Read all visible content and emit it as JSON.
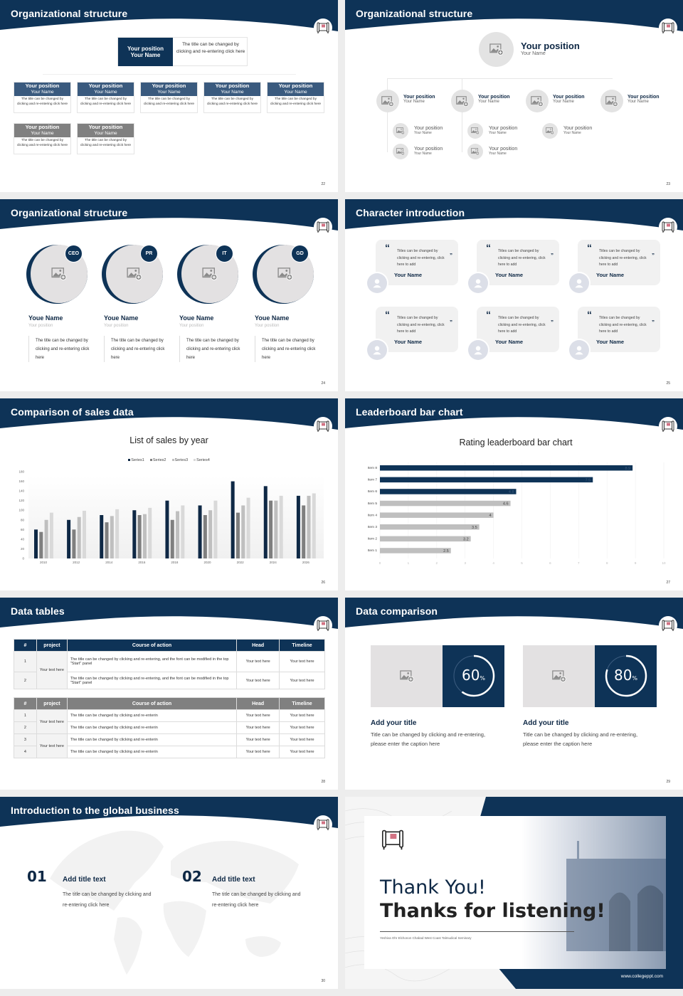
{
  "slides": {
    "s22": {
      "title": "Organizational structure",
      "page": "22",
      "top": {
        "position": "Your position",
        "name": "Your Name",
        "desc": "The title can be changed by clicking and re-entering click here"
      },
      "row1": [
        {
          "position": "Your position",
          "name": "Your Name",
          "desc": "The title can be changed by clicking and re-entering click here"
        },
        {
          "position": "Your position",
          "name": "Your Name",
          "desc": "The title can be changed by clicking and re-entering click here"
        },
        {
          "position": "Your position",
          "name": "Your Name",
          "desc": "The title can be changed by clicking and re-entering click here"
        },
        {
          "position": "Your position",
          "name": "Your Name",
          "desc": "The title can be changed by clicking and re-entering click here"
        },
        {
          "position": "Your position",
          "name": "Your Name",
          "desc": "The title can be changed by clicking and re-entering click here"
        }
      ],
      "row2": [
        {
          "position": "Your position",
          "name": "Your Name",
          "desc": "The title can be changed by clicking and re-entering click here"
        },
        {
          "position": "Your position",
          "name": "Your Name",
          "desc": "The title can be changed by clicking and re-entering click here"
        }
      ]
    },
    "s23": {
      "title": "Organizational structure",
      "page": "23",
      "top": {
        "position": "Your position",
        "name": "Your Name"
      },
      "level1": [
        {
          "position": "Your position",
          "name": "Your Name"
        },
        {
          "position": "Your position",
          "name": "Your Name"
        },
        {
          "position": "Your position",
          "name": "Your Name"
        },
        {
          "position": "Your position",
          "name": "Your Name"
        }
      ],
      "level2": [
        {
          "position": "Your position",
          "name": "Your Name"
        },
        {
          "position": "Your position",
          "name": "Your Name"
        },
        {
          "position": "Your position",
          "name": "Your Name"
        },
        {
          "position": "Your position",
          "name": "Your Name"
        },
        {
          "position": "Your position",
          "name": "Your Name"
        }
      ]
    },
    "s24": {
      "title": "Organizational structure",
      "page": "24",
      "members": [
        {
          "badge": "CEO",
          "name": "Youe Name",
          "position": "Your position",
          "desc": "The title can be changed by clicking and re-entering click here"
        },
        {
          "badge": "PR",
          "name": "Youe Name",
          "position": "Your position",
          "desc": "The title can be changed by clicking and re-entering click here"
        },
        {
          "badge": "IT",
          "name": "Youe Name",
          "position": "Your position",
          "desc": "The title can be changed by clicking and re-entering click here"
        },
        {
          "badge": "GD",
          "name": "Youe Name",
          "position": "Your position",
          "desc": "The title can be changed by clicking and re-entering click here"
        }
      ]
    },
    "s25": {
      "title": "Character introduction",
      "page": "25",
      "cards": [
        {
          "quote": "Titles can be changed by clicking and re-entering, click here to add",
          "name": "Your Name"
        },
        {
          "quote": "Titles can be changed by clicking and re-entering, click here to add",
          "name": "Your Name"
        },
        {
          "quote": "Titles can be changed by clicking and re-entering, click here to add",
          "name": "Your Name"
        },
        {
          "quote": "Titles can be changed by clicking and re-entering, click here to add",
          "name": "Your Name"
        },
        {
          "quote": "Titles can be changed by clicking and re-entering, click here to add",
          "name": "Your Name"
        },
        {
          "quote": "Titles can be changed by clicking and re-entering, click here to add",
          "name": "Your Name"
        }
      ],
      "open_quote": "“",
      "close_quote": "”"
    },
    "s26": {
      "title": "Comparison of sales data",
      "page": "26"
    },
    "s27": {
      "title": "Leaderboard bar chart",
      "page": "27"
    },
    "s28": {
      "title": "Data tables",
      "page": "28",
      "headers": [
        "#",
        "project",
        "Course of action",
        "Head",
        "Timeline"
      ],
      "table1": {
        "project": "Your text here",
        "rows": [
          {
            "num": "1",
            "action": "The title can be changed by clicking and re-entering, and the font can be modified in the top \"Start\" panel",
            "head": "Your text here",
            "timeline": "Your text here"
          },
          {
            "num": "2",
            "action": "The title can be changed by clicking and re-entering, and the font can be modified in the top \"Start\" panel",
            "head": "Your text here",
            "timeline": "Your text here"
          }
        ]
      },
      "table2": {
        "projects": [
          "Your text here",
          "Your text here"
        ],
        "rows": [
          {
            "num": "1",
            "action": "The title can be changed by clicking and re-enterin",
            "head": "Your text here",
            "timeline": "Your text here"
          },
          {
            "num": "2",
            "action": "The title can be changed by clicking and re-enterin",
            "head": "Your text here",
            "timeline": "Your text here"
          },
          {
            "num": "3",
            "action": "The title can be changed by clicking and re-enterin",
            "head": "Your text here",
            "timeline": "Your text here"
          },
          {
            "num": "4",
            "action": "The title can be changed by clicking and re-enterin",
            "head": "Your text here",
            "timeline": "Your text here"
          }
        ]
      }
    },
    "s29": {
      "title": "Data comparison",
      "page": "29",
      "items": [
        {
          "value": "60",
          "unit": "%",
          "pct": 60,
          "title": "Add your title",
          "desc": "Title can be changed by clicking and re-entering, please enter the caption here"
        },
        {
          "value": "80",
          "unit": "%",
          "pct": 80,
          "title": "Add your title",
          "desc": "Title can be changed by clicking and re-entering, please enter the caption here"
        }
      ]
    },
    "s30": {
      "title": "Introduction to the global business",
      "page": "30",
      "items": [
        {
          "num": "01",
          "title": "Add title text",
          "desc": "The title can be changed by clicking and re-entering click here"
        },
        {
          "num": "02",
          "title": "Add title text",
          "desc": "The title can be changed by clicking and re-entering click here"
        }
      ]
    },
    "s31": {
      "line1": "Thank You!",
      "line2": "Thanks for listening!",
      "subtitle": "Yeshiva Ohr Elchonon Chabad West Coast Talmudical Seminary",
      "url": "www.collegeppt.com"
    }
  },
  "colors": {
    "navy": "#0e3357",
    "gray": "#808080",
    "light": "#e3e3e3"
  },
  "chart_data": [
    {
      "type": "bar",
      "title": "List of sales by year",
      "categories": [
        "2010",
        "2012",
        "2014",
        "2016",
        "2018",
        "2020",
        "2022",
        "2024",
        "2026"
      ],
      "series": [
        {
          "name": "Series1",
          "color": "#0e2845",
          "values": [
            60,
            80,
            90,
            100,
            120,
            110,
            160,
            150,
            130
          ]
        },
        {
          "name": "Series2",
          "color": "#7f7f7f",
          "values": [
            55,
            60,
            75,
            90,
            80,
            90,
            95,
            120,
            110
          ]
        },
        {
          "name": "Series3",
          "color": "#bfbfbf",
          "values": [
            80,
            86,
            88,
            92,
            98,
            100,
            110,
            120,
            130
          ]
        },
        {
          "name": "Series4",
          "color": "#d9d9d9",
          "values": [
            95,
            99,
            102,
            105,
            110,
            120,
            126,
            130,
            135
          ]
        }
      ],
      "yticks": [
        "0",
        "20",
        "40",
        "60",
        "80",
        "100",
        "120",
        "140",
        "160",
        "180"
      ],
      "ylim": [
        0,
        180
      ],
      "legend_position": "top",
      "grid": false
    },
    {
      "type": "bar",
      "orientation": "horizontal",
      "title": "Rating leaderboard bar chart",
      "categories": [
        "Item 8",
        "Item 7",
        "Item 6",
        "Item 5",
        "Item 4",
        "Item 3",
        "Item 2",
        "Item 1"
      ],
      "values": [
        8.9,
        7.5,
        4.8,
        4.6,
        4,
        3.5,
        3.2,
        2.5
      ],
      "labels": [
        "8.9",
        "7.5",
        "4.8",
        "4.6",
        "4",
        "3.5",
        "3.2",
        "2.5"
      ],
      "highlight_colors": [
        "#0e3357",
        "#0e3357",
        "#0e3357",
        "#bfbfbf",
        "#bfbfbf",
        "#bfbfbf",
        "#bfbfbf",
        "#bfbfbf"
      ],
      "xticks": [
        "0",
        "1",
        "2",
        "3",
        "4",
        "5",
        "6",
        "7",
        "8",
        "9",
        "10"
      ],
      "xlim": [
        0,
        10
      ],
      "grid": true
    }
  ]
}
